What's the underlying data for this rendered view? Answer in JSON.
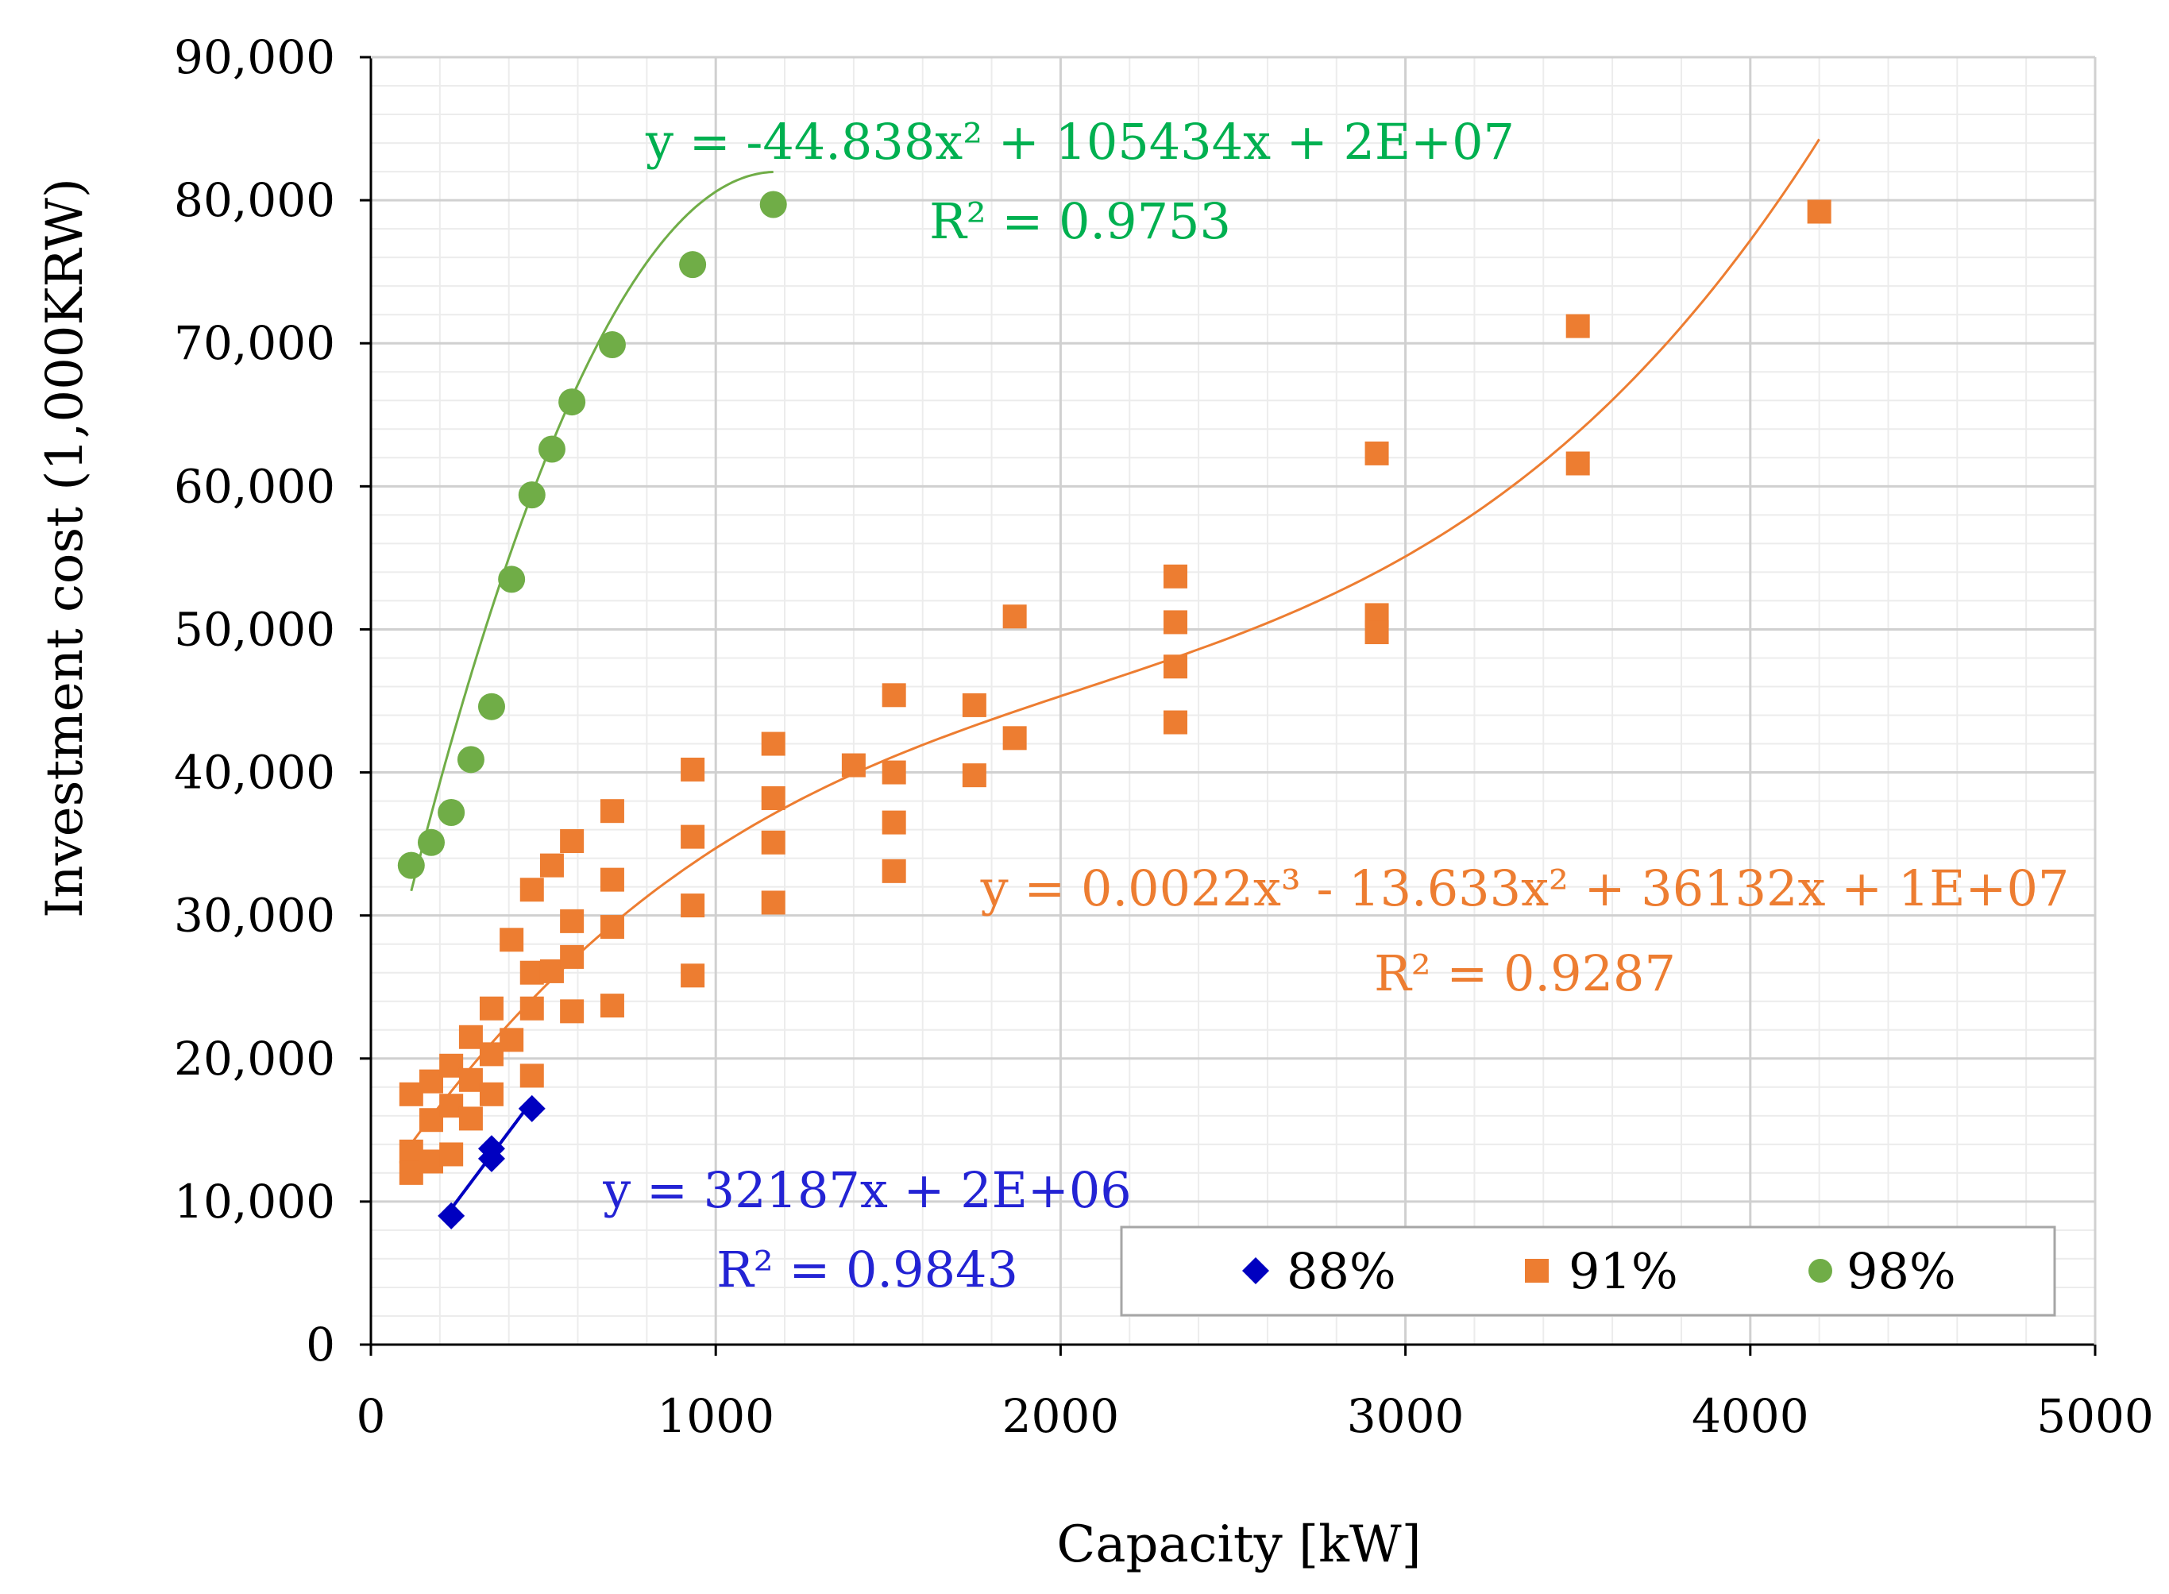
{
  "chart_data": {
    "type": "scatter",
    "title": "",
    "xlabel": "Capacity [kW]",
    "ylabel": "Investment cost (1,000KRW)",
    "xlim": [
      0,
      5000
    ],
    "ylim": [
      0,
      90000
    ],
    "x_ticks": [
      0,
      1000,
      2000,
      3000,
      4000,
      5000
    ],
    "x_tick_labels": [
      "0",
      "1000",
      "2000",
      "3000",
      "4000",
      "5000"
    ],
    "y_ticks": [
      0,
      10000,
      20000,
      30000,
      40000,
      50000,
      60000,
      70000,
      80000,
      90000
    ],
    "y_tick_labels": [
      "0",
      "10,000",
      "20,000",
      "30,000",
      "40,000",
      "50,000",
      "60,000",
      "70,000",
      "80,000",
      "90,000"
    ],
    "grid": true,
    "legend_position": "bottom-right",
    "series": [
      {
        "name": "88%",
        "color": "#0000c0",
        "marker": "diamond",
        "points": [
          [
            233,
            9000
          ],
          [
            350,
            13000
          ],
          [
            350,
            13700
          ],
          [
            467,
            16500
          ]
        ],
        "trendline": {
          "type": "linear",
          "a": 32.187,
          "b": 2000,
          "x_range": [
            233,
            467
          ]
        },
        "equation": "y = 32187x + 2E+06",
        "r2": "R² = 0.9843"
      },
      {
        "name": "91%",
        "color": "#ed7d31",
        "marker": "square",
        "points": [
          [
            117,
            17500
          ],
          [
            117,
            13500
          ],
          [
            117,
            12000
          ],
          [
            175,
            18400
          ],
          [
            175,
            15700
          ],
          [
            175,
            12800
          ],
          [
            233,
            19500
          ],
          [
            233,
            16700
          ],
          [
            233,
            13300
          ],
          [
            290,
            21500
          ],
          [
            290,
            18500
          ],
          [
            290,
            15800
          ],
          [
            350,
            23500
          ],
          [
            350,
            20300
          ],
          [
            350,
            17500
          ],
          [
            408,
            28300
          ],
          [
            408,
            21300
          ],
          [
            467,
            31800
          ],
          [
            467,
            26000
          ],
          [
            467,
            23500
          ],
          [
            467,
            18800
          ],
          [
            525,
            33500
          ],
          [
            525,
            26100
          ],
          [
            583,
            35200
          ],
          [
            583,
            29600
          ],
          [
            583,
            27100
          ],
          [
            583,
            23300
          ],
          [
            700,
            37300
          ],
          [
            700,
            32500
          ],
          [
            700,
            29200
          ],
          [
            700,
            23700
          ],
          [
            933,
            40200
          ],
          [
            933,
            35500
          ],
          [
            933,
            30700
          ],
          [
            933,
            25800
          ],
          [
            1167,
            42000
          ],
          [
            1167,
            38200
          ],
          [
            1167,
            35100
          ],
          [
            1167,
            30900
          ],
          [
            1400,
            40500
          ],
          [
            1517,
            45400
          ],
          [
            1517,
            40000
          ],
          [
            1517,
            36500
          ],
          [
            1517,
            33100
          ],
          [
            1750,
            44700
          ],
          [
            1750,
            39800
          ],
          [
            1867,
            50900
          ],
          [
            1867,
            42400
          ],
          [
            2333,
            53700
          ],
          [
            2333,
            50500
          ],
          [
            2333,
            47400
          ],
          [
            2333,
            43500
          ],
          [
            2917,
            62300
          ],
          [
            2917,
            51000
          ],
          [
            2917,
            49800
          ],
          [
            3500,
            71200
          ],
          [
            3500,
            61600
          ],
          [
            4200,
            79200
          ]
        ],
        "trendline": {
          "type": "poly3",
          "a3": 2.2e-06,
          "a2": -0.013633,
          "a1": 36.132,
          "a0": 10000,
          "x_range": [
            117,
            4200
          ]
        },
        "equation": "y = 0.0022x³ - 13.633x² + 36132x + 1E+07",
        "r2": "R² = 0.9287"
      },
      {
        "name": "98%",
        "color": "#70ad47",
        "marker": "circle",
        "points": [
          [
            117,
            33500
          ],
          [
            175,
            35100
          ],
          [
            233,
            37200
          ],
          [
            290,
            40900
          ],
          [
            350,
            44600
          ],
          [
            408,
            53500
          ],
          [
            467,
            59400
          ],
          [
            525,
            62600
          ],
          [
            583,
            65900
          ],
          [
            700,
            69900
          ],
          [
            933,
            75500
          ],
          [
            1167,
            79700
          ]
        ],
        "trendline": {
          "type": "poly2",
          "a2": -0.044838,
          "a1": 105.434,
          "a0": 20000,
          "x_range": [
            117,
            1167
          ]
        },
        "equation": "y = -44.838x² + 105434x + 2E+07",
        "r2": "R² = 0.9753"
      }
    ],
    "annotation_colors": {
      "88%": "#2323d4",
      "91%": "#ed7d31",
      "98%": "#00b050"
    }
  }
}
